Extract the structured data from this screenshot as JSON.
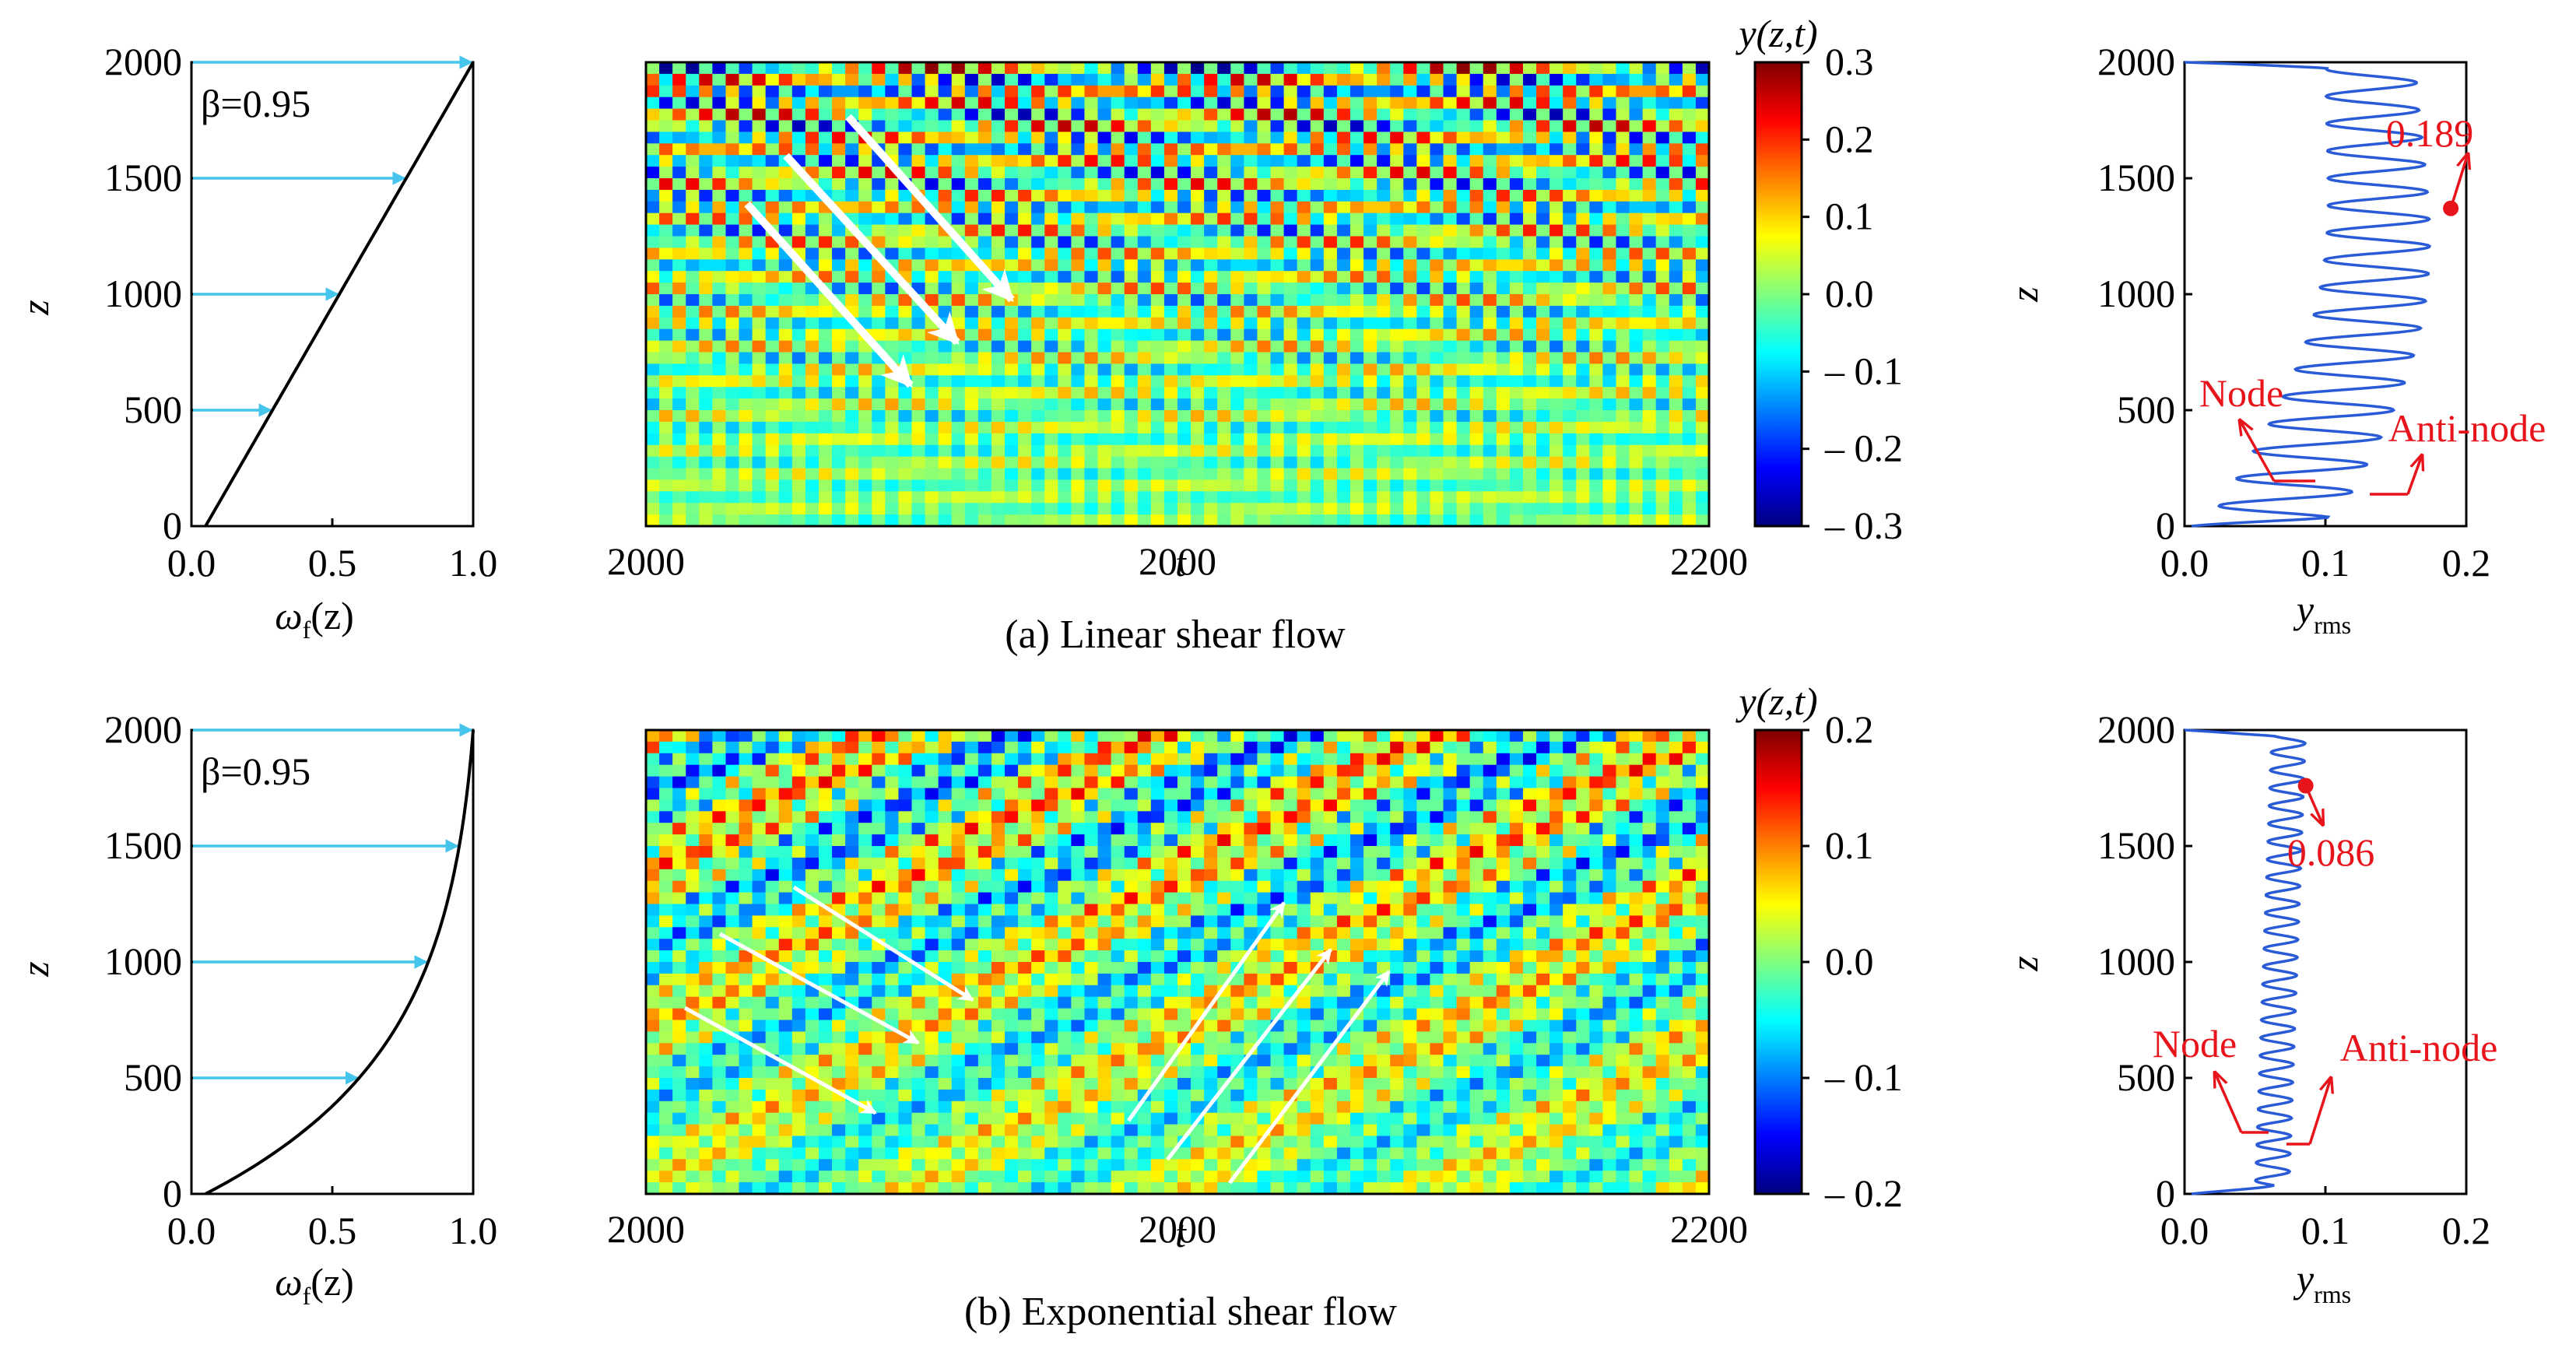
{
  "rows": [
    {
      "caption": "(a) Linear shear flow",
      "profile": {
        "type": "line",
        "beta_label": "β=0.95",
        "xlabel": "ω",
        "xlabel_sub": "f",
        "xlabel_tail": "(z)",
        "ylabel": "z",
        "xlim": [
          0,
          1
        ],
        "ylim": [
          0,
          2000
        ],
        "xticks": [
          "0.0",
          "0.5",
          "1.0"
        ],
        "yticks": [
          "0",
          "500",
          "1000",
          "1500",
          "2000"
        ],
        "shape": "linear",
        "x": [
          0.05,
          1.0
        ],
        "y": [
          0,
          2000
        ],
        "arrow_z": [
          500,
          1000,
          1500,
          2000
        ]
      },
      "heatmap": {
        "type": "heatmap",
        "xlabel": "t",
        "xticks": [
          "2000",
          "2000",
          "2200"
        ],
        "colorbar_title": "y(z,t)",
        "colorbar_ticks": [
          "0.3",
          "0.2",
          "0.1",
          "0.0",
          "– 0.1",
          "– 0.2",
          "– 0.3"
        ],
        "range": [
          -0.3,
          0.3
        ],
        "pattern": "linear"
      },
      "rms": {
        "type": "line",
        "xlabel": "y",
        "xlabel_sub": "rms",
        "ylabel": "z",
        "xlim": [
          0,
          0.2
        ],
        "ylim": [
          0,
          2000
        ],
        "xticks": [
          "0.0",
          "0.1",
          "0.2"
        ],
        "yticks": [
          "0",
          "500",
          "1000",
          "1500",
          "2000"
        ],
        "shape": "linear",
        "peak_value": 0.189,
        "peak_z": 1370,
        "peak_label": "0.189",
        "node_label": "Node",
        "antinode_label": "Anti-node"
      }
    },
    {
      "caption": "(b) Exponential shear flow",
      "profile": {
        "type": "line",
        "beta_label": "β=0.95",
        "xlabel": "ω",
        "xlabel_sub": "f",
        "xlabel_tail": "(z)",
        "ylabel": "z",
        "xlim": [
          0,
          1
        ],
        "ylim": [
          0,
          2000
        ],
        "xticks": [
          "0.0",
          "0.5",
          "1.0"
        ],
        "yticks": [
          "0",
          "500",
          "1000",
          "1500",
          "2000"
        ],
        "shape": "exponential",
        "x": [
          0.05,
          1.0
        ],
        "y": [
          0,
          2000
        ],
        "arrow_z": [
          500,
          1000,
          1500,
          2000
        ]
      },
      "heatmap": {
        "type": "heatmap",
        "xlabel": "t",
        "xticks": [
          "2000",
          "2000",
          "2200"
        ],
        "colorbar_title": "y(z,t)",
        "colorbar_ticks": [
          "0.2",
          "0.1",
          "0.0",
          "– 0.1",
          "– 0.2"
        ],
        "range": [
          -0.2,
          0.2
        ],
        "pattern": "exponential"
      },
      "rms": {
        "type": "line",
        "xlabel": "y",
        "xlabel_sub": "rms",
        "ylabel": "z",
        "xlim": [
          0,
          0.2
        ],
        "ylim": [
          0,
          2000
        ],
        "xticks": [
          "0.0",
          "0.1",
          "0.2"
        ],
        "yticks": [
          "0",
          "500",
          "1000",
          "1500",
          "2000"
        ],
        "shape": "exponential",
        "peak_value": 0.086,
        "peak_z": 1760,
        "peak_label": "0.086",
        "node_label": "Node",
        "antinode_label": "Anti-node"
      }
    }
  ],
  "colors": {
    "arrow": "#45c4ec",
    "rms_line": "#2a5bd7",
    "annotation": "#e8141b",
    "profile_line": "#000000"
  }
}
